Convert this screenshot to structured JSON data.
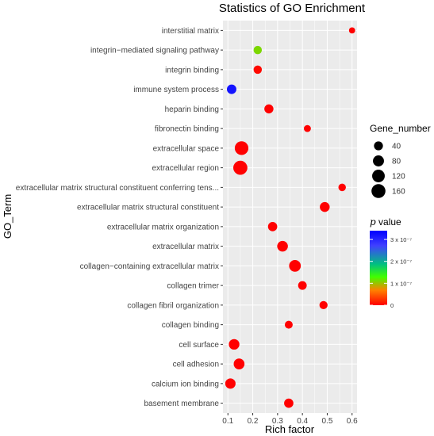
{
  "chart_data": {
    "type": "scatter",
    "title": "Statistics of GO Enrichment",
    "xlabel": "Rich factor",
    "ylabel": "GO_Term",
    "xlim": [
      0.08,
      0.62
    ],
    "xticks": [
      "0.1",
      "0.2",
      "0.3",
      "0.4",
      "0.5",
      "0.6"
    ],
    "xtick_values": [
      0.1,
      0.2,
      0.3,
      0.4,
      0.5,
      0.6
    ],
    "grid": true,
    "legend_placement": "right",
    "terms": [
      "interstitial matrix",
      "integrin−mediated signaling pathway",
      "integrin binding",
      "immune system process",
      "heparin binding",
      "fibronectin binding",
      "extracellular space",
      "extracellular region",
      "extracellular matrix structural constituent conferring tens...",
      "extracellular matrix structural constituent",
      "extracellular matrix organization",
      "extracellular matrix",
      "collagen−containing extracellular matrix",
      "collagen trimer",
      "collagen fibril organization",
      "collagen binding",
      "cell surface",
      "cell adhesion",
      "calcium ion binding",
      "basement membrane"
    ],
    "points": [
      {
        "x": 0.6,
        "gene_number": 8,
        "p_value": 0.0
      },
      {
        "x": 0.22,
        "gene_number": 30,
        "p_value": 1.1e-07
      },
      {
        "x": 0.22,
        "gene_number": 30,
        "p_value": 5e-09
      },
      {
        "x": 0.115,
        "gene_number": 48,
        "p_value": 3.2e-07
      },
      {
        "x": 0.265,
        "gene_number": 42,
        "p_value": 0.0
      },
      {
        "x": 0.42,
        "gene_number": 15,
        "p_value": 0.0
      },
      {
        "x": 0.155,
        "gene_number": 150,
        "p_value": 0.0
      },
      {
        "x": 0.15,
        "gene_number": 165,
        "p_value": 0.0
      },
      {
        "x": 0.56,
        "gene_number": 20,
        "p_value": 0.0
      },
      {
        "x": 0.49,
        "gene_number": 55,
        "p_value": 0.0
      },
      {
        "x": 0.28,
        "gene_number": 45,
        "p_value": 0.0
      },
      {
        "x": 0.32,
        "gene_number": 72,
        "p_value": 0.0
      },
      {
        "x": 0.37,
        "gene_number": 95,
        "p_value": 0.0
      },
      {
        "x": 0.4,
        "gene_number": 35,
        "p_value": 0.0
      },
      {
        "x": 0.485,
        "gene_number": 28,
        "p_value": 0.0
      },
      {
        "x": 0.345,
        "gene_number": 25,
        "p_value": 0.0
      },
      {
        "x": 0.125,
        "gene_number": 70,
        "p_value": 0.0
      },
      {
        "x": 0.145,
        "gene_number": 75,
        "p_value": 0.0
      },
      {
        "x": 0.11,
        "gene_number": 65,
        "p_value": 0.0
      },
      {
        "x": 0.345,
        "gene_number": 45,
        "p_value": 0.0
      }
    ],
    "size_legend": {
      "title": "Gene_number",
      "values": [
        40,
        80,
        120,
        160
      ],
      "labels": [
        "40",
        "80",
        "120",
        "160"
      ]
    },
    "color_legend": {
      "title_italic": "p",
      "title_rest": " value",
      "labels": [
        "3 x 10⁻⁷",
        "2 x 10⁻⁷",
        "1 x 10⁻⁷",
        "0"
      ],
      "values": [
        3e-07,
        2e-07,
        1e-07,
        0
      ],
      "max": 3.4e-07,
      "colors": [
        "#ff0000",
        "#ff8000",
        "#00ff00",
        "#00c0c0",
        "#3030ff",
        "#0000ff"
      ]
    }
  }
}
